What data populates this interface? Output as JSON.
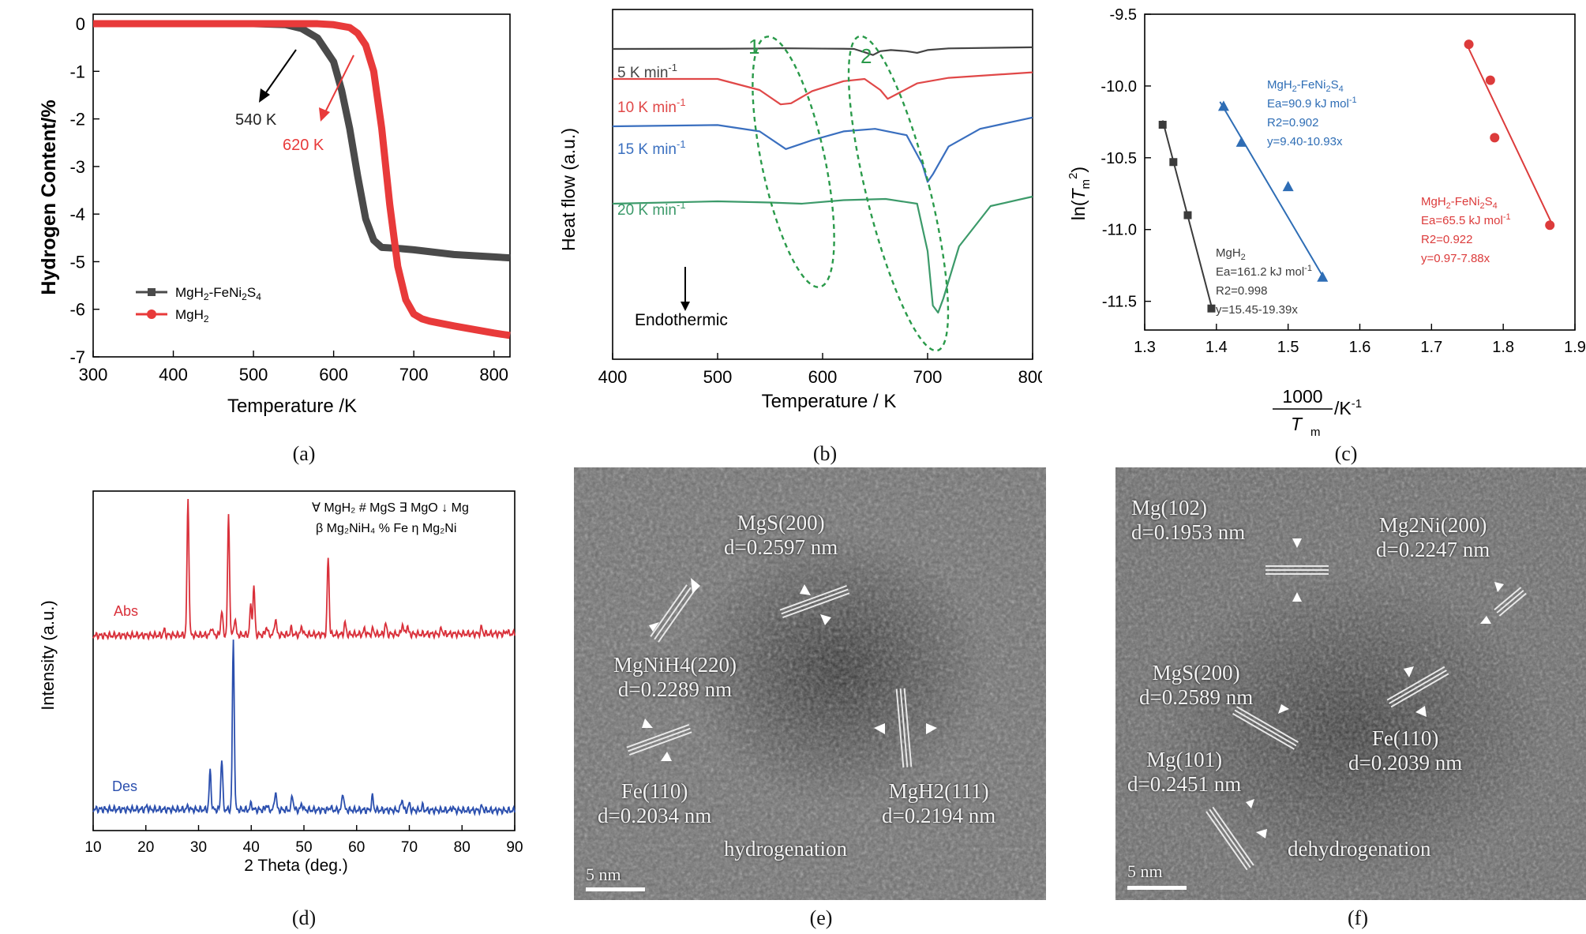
{
  "chart_data": [
    {
      "panel": "(a)",
      "type": "line",
      "xlabel": "Temperature /K",
      "ylabel": "Hydrogen Content/%",
      "xlim": [
        300,
        820
      ],
      "ylim": [
        -7,
        0.2
      ],
      "xticks": [
        "300",
        "400",
        "500",
        "600",
        "700",
        "800"
      ],
      "yticks": [
        "0",
        "-1",
        "-2",
        "-3",
        "-4",
        "-5",
        "-6",
        "-7"
      ],
      "series": [
        {
          "name": "MgH2-FeNi2S4",
          "color": "#4a4a4a",
          "marker": "square",
          "x": [
            300,
            500,
            540,
            560,
            580,
            600,
            610,
            620,
            630,
            640,
            650,
            660,
            680,
            700,
            750,
            800,
            820
          ],
          "y": [
            0,
            0,
            -0.02,
            -0.1,
            -0.3,
            -0.8,
            -1.4,
            -2.2,
            -3.2,
            -4.1,
            -4.55,
            -4.7,
            -4.72,
            -4.75,
            -4.85,
            -4.9,
            -4.92
          ]
        },
        {
          "name": "MgH2",
          "color": "#e83a3a",
          "marker": "circle",
          "x": [
            300,
            580,
            600,
            620,
            630,
            640,
            650,
            660,
            670,
            680,
            690,
            700,
            710,
            720,
            750,
            800,
            820
          ],
          "y": [
            0,
            0,
            -0.02,
            -0.08,
            -0.2,
            -0.45,
            -1.0,
            -2.2,
            -3.8,
            -5.1,
            -5.8,
            -6.1,
            -6.2,
            -6.25,
            -6.35,
            -6.5,
            -6.55
          ]
        }
      ],
      "annotations": [
        {
          "text": "540 K",
          "color": "#222222"
        },
        {
          "text": "620 K",
          "color": "#e83a3a"
        }
      ]
    },
    {
      "panel": "(b)",
      "type": "line",
      "xlabel": "Temperature / K",
      "ylabel": "Heat flow (a.u.)",
      "xlim": [
        400,
        800
      ],
      "xticks": [
        "400",
        "500",
        "600",
        "700",
        "800"
      ],
      "series": [
        {
          "name": "5 K min-1",
          "color": "#444444",
          "x": [
            400,
            500,
            540,
            560,
            580,
            600,
            620,
            630,
            640,
            648,
            655,
            665,
            680,
            690,
            700,
            720,
            800
          ],
          "y": [
            0,
            0.02,
            0.04,
            0.06,
            0.05,
            0.03,
            0.02,
            0,
            -0.3,
            -0.55,
            -0.2,
            -0.1,
            -0.2,
            -0.35,
            -0.1,
            0.05,
            0.15
          ]
        },
        {
          "name": "10 K min-1",
          "color": "#e04848",
          "x": [
            400,
            500,
            540,
            560,
            570,
            590,
            620,
            640,
            655,
            662,
            670,
            690,
            720,
            800
          ],
          "y": [
            0,
            0,
            -0.5,
            -1.15,
            -1.1,
            -0.55,
            -0.1,
            0,
            -0.5,
            -0.9,
            -0.7,
            -0.2,
            0.05,
            0.3
          ]
        },
        {
          "name": "15 K min-1",
          "color": "#3a6fbf",
          "x": [
            400,
            500,
            540,
            565,
            590,
            620,
            650,
            680,
            695,
            700,
            705,
            720,
            750,
            800
          ],
          "y": [
            0,
            0.05,
            -0.2,
            -0.9,
            -0.55,
            -0.2,
            -0.1,
            -0.35,
            -1.5,
            -2.2,
            -1.9,
            -0.8,
            -0.1,
            0.35
          ]
        },
        {
          "name": "20 K min-1",
          "color": "#3c9a6a",
          "x": [
            400,
            500,
            550,
            580,
            620,
            660,
            690,
            700,
            705,
            710,
            715,
            730,
            760,
            800
          ],
          "y": [
            0,
            0.1,
            0.05,
            0.0,
            0.15,
            0.2,
            0,
            -2.0,
            -4.3,
            -4.6,
            -4.0,
            -1.8,
            -0.1,
            0.3
          ]
        }
      ],
      "annotations": [
        {
          "text": "1",
          "color": "#2a9a4a"
        },
        {
          "text": "2",
          "color": "#2a9a4a"
        },
        {
          "text": "Endothermic",
          "color": "#111111"
        }
      ]
    },
    {
      "panel": "(c)",
      "type": "scatter",
      "xlabel_num": "1000",
      "xlabel_den": "T",
      "xlabel_sub": "m",
      "xlabel_unit": "/K-1",
      "ylabel": "ln(Tm2)",
      "xlim": [
        1.3,
        1.9
      ],
      "ylim": [
        -11.7,
        -9.5
      ],
      "xticks": [
        "1.3",
        "1.4",
        "1.5",
        "1.6",
        "1.7",
        "1.8",
        "1.9"
      ],
      "yticks": [
        "-9.5",
        "-10.0",
        "-10.5",
        "-11.0",
        "-11.5"
      ],
      "series": [
        {
          "name": "MgH2",
          "color": "#3b3b3b",
          "marker": "square",
          "x": [
            1.325,
            1.34,
            1.36,
            1.393
          ],
          "y": [
            -10.27,
            -10.53,
            -10.9,
            -11.55
          ],
          "fit": {
            "x": [
              1.325,
              1.395
            ],
            "y": [
              -10.24,
              -11.57
            ]
          },
          "labels": {
            "name": "MgH2",
            "ea": "Ea=161.2 kJ mol-1",
            "r2": "R2=0.998",
            "eq": "y=15.45-19.39x"
          }
        },
        {
          "name": "MgH2-FeNi2S4",
          "color": "#2e6db5",
          "marker": "triangle",
          "x": [
            1.41,
            1.435,
            1.5,
            1.548
          ],
          "y": [
            -10.14,
            -10.39,
            -10.7,
            -11.33
          ],
          "fit": {
            "x": [
              1.405,
              1.55
            ],
            "y": [
              -10.11,
              -11.34
            ]
          },
          "labels": {
            "name": "MgH2-FeNi2S4",
            "ea": "Ea=90.9 kJ mol-1",
            "r2": "R2=0.902",
            "eq": "y=9.40-10.93x"
          }
        },
        {
          "name": "MgH2-FeNi2S4",
          "color": "#dc3b3b",
          "marker": "circle",
          "x": [
            1.752,
            1.782,
            1.788,
            1.865
          ],
          "y": [
            -9.71,
            -9.96,
            -10.36,
            -10.97
          ],
          "fit": {
            "x": [
              1.75,
              1.867
            ],
            "y": [
              -9.72,
              -10.95
            ]
          },
          "labels": {
            "name": "MgH2-FeNi2S4",
            "ea": "Ea=65.5 kJ mol-1",
            "r2": "R2=0.922",
            "eq": "y=0.97-7.88x"
          }
        }
      ]
    },
    {
      "panel": "(d)",
      "type": "line",
      "xlabel": "2 Theta (deg.)",
      "ylabel": "Intensity (a.u.)",
      "xlim": [
        10,
        90
      ],
      "xticks": [
        "10",
        "20",
        "30",
        "40",
        "50",
        "60",
        "70",
        "80",
        "90"
      ],
      "legend_line1": "∀ MgH₂  # MgS  ∃ MgO  ↓ Mg",
      "legend_line2": "β Mg₂NiH₄  % Fe  η Mg₂Ni",
      "series": [
        {
          "name": "Abs",
          "color": "#d9303a",
          "peaks": [
            [
              23.5,
              0.5
            ],
            [
              28,
              13
            ],
            [
              32.5,
              0.8
            ],
            [
              34.4,
              2.4
            ],
            [
              35.7,
              11.5
            ],
            [
              36.9,
              1.6
            ],
            [
              39.9,
              2.7
            ],
            [
              40.5,
              4.6
            ],
            [
              42.9,
              0.8
            ],
            [
              44.6,
              1.6
            ],
            [
              47.6,
              0.6
            ],
            [
              49.6,
              0.8
            ],
            [
              54.6,
              7.4
            ],
            [
              57.8,
              1.1
            ],
            [
              61.5,
              0.5
            ],
            [
              63.1,
              0.5
            ],
            [
              65.5,
              1.0
            ],
            [
              68.7,
              1.0
            ],
            [
              69.6,
              0.8
            ],
            [
              76.1,
              0.5
            ],
            [
              83.7,
              0.6
            ],
            [
              88.5,
              0.3
            ]
          ]
        },
        {
          "name": "Des",
          "color": "#2b4fae",
          "peaks": [
            [
              20.2,
              0.3
            ],
            [
              28,
              0.3
            ],
            [
              32.2,
              3.7
            ],
            [
              34.4,
              4.9
            ],
            [
              36.6,
              16.2
            ],
            [
              40,
              0.6
            ],
            [
              42.9,
              0.5
            ],
            [
              44.6,
              1.8
            ],
            [
              47.8,
              1.4
            ],
            [
              49.6,
              0.6
            ],
            [
              55,
              0.3
            ],
            [
              57.4,
              1.7
            ],
            [
              63,
              1.3
            ],
            [
              68.6,
              1.1
            ],
            [
              70,
              0.6
            ],
            [
              72.5,
              0.4
            ],
            [
              78.2,
              0.3
            ],
            [
              83.8,
              0.4
            ]
          ]
        }
      ]
    }
  ],
  "images": [
    {
      "panel": "(e)",
      "caption_word": "hydrogenation",
      "scale_bar": "5 nm",
      "labels": [
        {
          "line1": "MgS(200)",
          "line2": "d=0.2597 nm"
        },
        {
          "line1": "MgNiH4(220)",
          "line2": "d=0.2289 nm"
        },
        {
          "line1": "Fe(110)",
          "line2": "d=0.2034 nm"
        },
        {
          "line1": "MgH2(111)",
          "line2": "d=0.2194 nm"
        }
      ]
    },
    {
      "panel": "(f)",
      "caption_word": "dehydrogenation",
      "scale_bar": "5 nm",
      "labels": [
        {
          "line1": "Mg(102)",
          "line2": "d=0.1953 nm"
        },
        {
          "line1": "Mg2Ni(200)",
          "line2": "d=0.2247 nm"
        },
        {
          "line1": "MgS(200)",
          "line2": "d=0.2589 nm"
        },
        {
          "line1": "Mg(101)",
          "line2": "d=0.2451 nm"
        },
        {
          "line1": "Fe(110)",
          "line2": "d=0.2039 nm"
        }
      ]
    }
  ],
  "captions": [
    "(a)",
    "(b)",
    "(c)",
    "(d)",
    "(e)",
    "(f)"
  ]
}
